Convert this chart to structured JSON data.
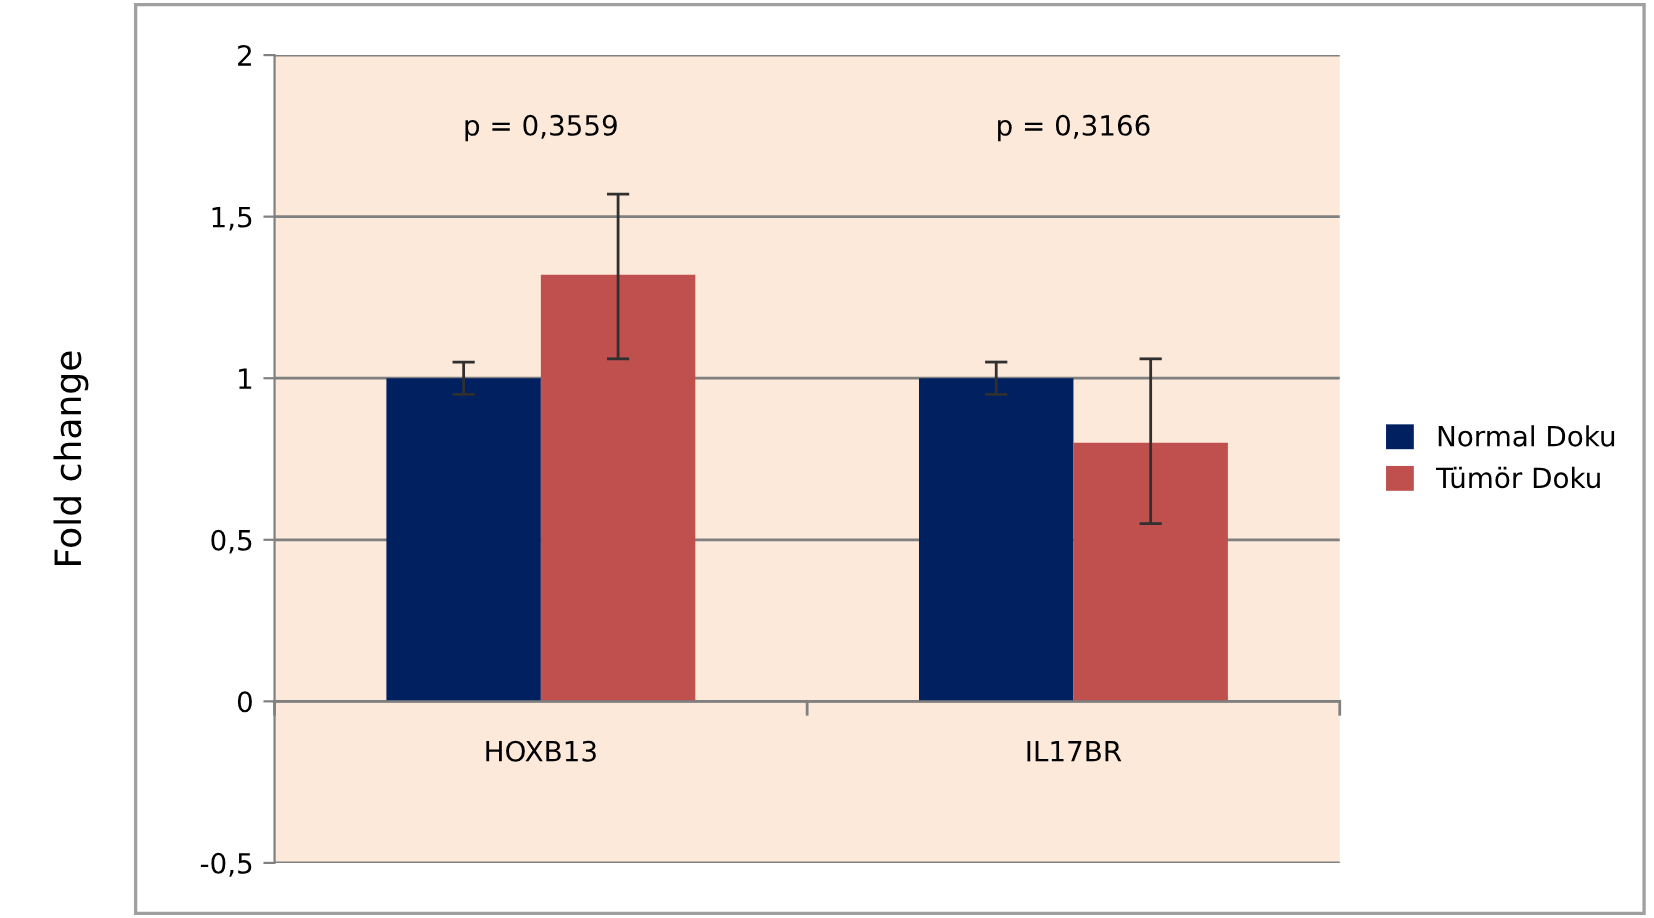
{
  "chart_data": {
    "type": "bar",
    "ylabel": "Fold change",
    "categories": [
      "HOXB13",
      "IL17BR"
    ],
    "series": [
      {
        "name": "Normal Doku",
        "color": "#002060",
        "values": [
          1.0,
          1.0
        ],
        "errors": [
          0.05,
          0.05
        ]
      },
      {
        "name": "Tümör Doku",
        "color": "#c0504d",
        "values": [
          1.32,
          0.8
        ],
        "errors": [
          [
            1.06,
            1.57
          ],
          [
            0.55,
            1.06
          ]
        ]
      }
    ],
    "ylim": [
      -0.5,
      2
    ],
    "yticks": [
      {
        "value": -0.5,
        "label": "-0,5"
      },
      0,
      {
        "value": 0.5,
        "label": "0,5"
      },
      1,
      {
        "value": 1.5,
        "label": "1,5"
      },
      2
    ],
    "annotations": [
      "p = 0,3559",
      "p = 0,3166"
    ],
    "grid": "y",
    "legend": "right"
  }
}
